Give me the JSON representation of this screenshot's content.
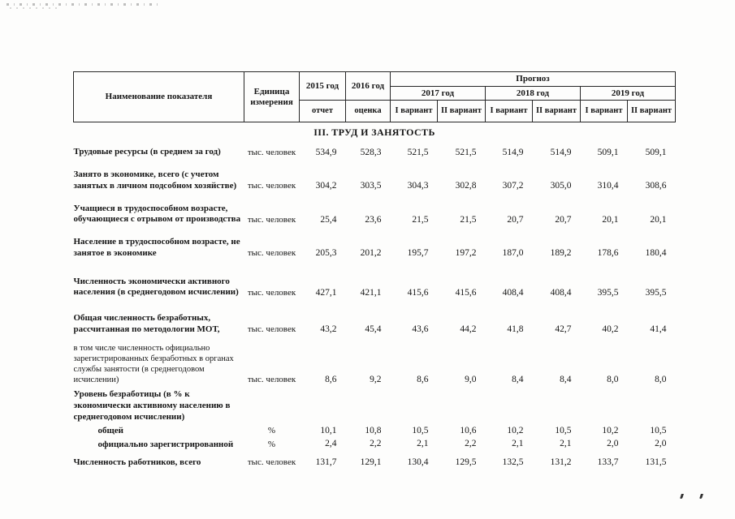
{
  "table": {
    "section_title": "III. ТРУД И ЗАНЯТОСТЬ",
    "headers": {
      "indicator": "Наименование показателя",
      "unit": "Единица измерения",
      "col_2015": "2015 год",
      "col_2016": "2016 год",
      "forecast": "Прогноз",
      "year_2017": "2017 год",
      "year_2018": "2018 год",
      "year_2019": "2019 год",
      "report": "отчет",
      "estimate": "оценка",
      "variant1": "I вариант",
      "variant2": "II вариант"
    },
    "rows": [
      {
        "name": "Трудовые ресурсы (в среднем за год)",
        "unit": "тыс. человек",
        "values": [
          "534,9",
          "528,3",
          "521,5",
          "521,5",
          "514,9",
          "514,9",
          "509,1",
          "509,1"
        ]
      },
      {
        "name": "Занято в экономике, всего (с учетом занятых в личном подсобном хозяйстве)",
        "unit": "тыс. человек",
        "values": [
          "304,2",
          "303,5",
          "304,3",
          "302,8",
          "307,2",
          "305,0",
          "310,4",
          "308,6"
        ]
      },
      {
        "name": "Учащиеся в трудоспособном возрасте, обучающиеся с отрывом от производства",
        "unit": "тыс. человек",
        "values": [
          "25,4",
          "23,6",
          "21,5",
          "21,5",
          "20,7",
          "20,7",
          "20,1",
          "20,1"
        ]
      },
      {
        "name": "Население в трудоспособном возрасте, не занятое в экономике",
        "unit": "тыс. человек",
        "values": [
          "205,3",
          "201,2",
          "195,7",
          "197,2",
          "187,0",
          "189,2",
          "178,6",
          "180,4"
        ]
      },
      {
        "name": "Численность экономически активного населения (в среднегодовом исчислении)",
        "unit": "тыс. человек",
        "values": [
          "427,1",
          "421,1",
          "415,6",
          "415,6",
          "408,4",
          "408,4",
          "395,5",
          "395,5"
        ]
      },
      {
        "name": "Общая численность безработных, рассчитанная по методологии МОТ,",
        "unit": "тыс. человек",
        "values": [
          "43,2",
          "45,4",
          "43,6",
          "44,2",
          "41,8",
          "42,7",
          "40,2",
          "41,4"
        ]
      },
      {
        "name": "в том числе численность официально зарегистрированных безработных в органах службы занятости (в среднегодовом исчислении)",
        "unit": "тыс. человек",
        "values": [
          "8,6",
          "9,2",
          "8,6",
          "9,0",
          "8,4",
          "8,4",
          "8,0",
          "8,0"
        ]
      },
      {
        "name": "Уровень безработицы (в % к экономически активному населению в среднегодовом исчислении)",
        "unit": "",
        "values": []
      },
      {
        "name": "общей",
        "unit": "%",
        "values": [
          "10,1",
          "10,8",
          "10,5",
          "10,6",
          "10,2",
          "10,5",
          "10,2",
          "10,5"
        ]
      },
      {
        "name": "официально зарегистрированной",
        "unit": "%",
        "values": [
          "2,4",
          "2,2",
          "2,1",
          "2,2",
          "2,1",
          "2,1",
          "2,0",
          "2,0"
        ]
      },
      {
        "name": "Численность работников, всего",
        "unit": "тыс. человек",
        "values": [
          "131,7",
          "129,1",
          "130,4",
          "129,5",
          "132,5",
          "131,2",
          "133,7",
          "131,5"
        ]
      }
    ]
  }
}
